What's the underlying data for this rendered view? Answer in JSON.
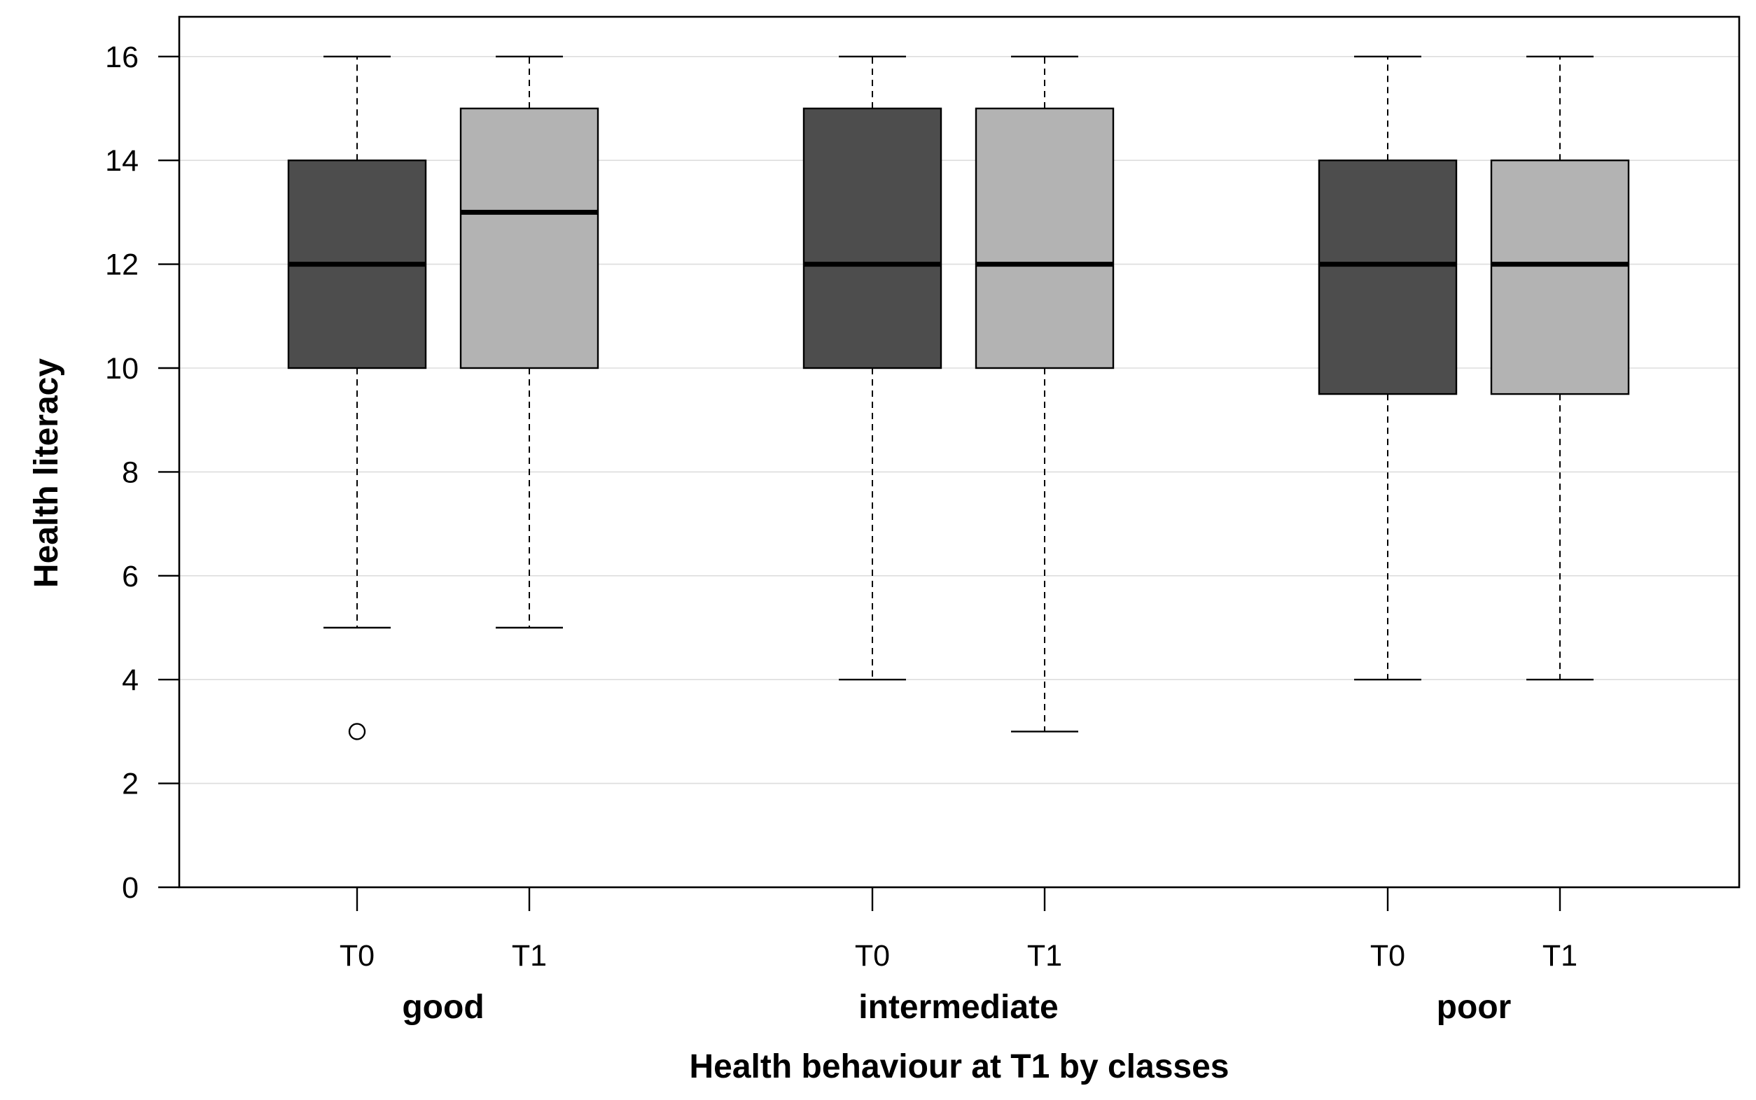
{
  "chart_data": {
    "type": "boxplot",
    "xlabel": "Health behaviour at T1 by classes",
    "ylabel": "Health literacy",
    "ylim": [
      0,
      16.8
    ],
    "yticks": [
      0,
      2,
      4,
      6,
      8,
      10,
      12,
      14,
      16
    ],
    "grid": "horizontal",
    "colors": {
      "T0": "#4d4d4d",
      "T1": "#b3b3b3",
      "grid": "#dddddd",
      "line": "#000000"
    },
    "groups": [
      {
        "label": "good",
        "boxes": [
          {
            "time": "T0",
            "whisker_low": 5,
            "q1": 10,
            "median": 12,
            "q3": 14,
            "whisker_high": 16,
            "outliers": [
              3
            ]
          },
          {
            "time": "T1",
            "whisker_low": 5,
            "q1": 10,
            "median": 13,
            "q3": 15,
            "whisker_high": 16,
            "outliers": []
          }
        ]
      },
      {
        "label": "intermediate",
        "boxes": [
          {
            "time": "T0",
            "whisker_low": 4,
            "q1": 10,
            "median": 12,
            "q3": 15,
            "whisker_high": 16,
            "outliers": []
          },
          {
            "time": "T1",
            "whisker_low": 3,
            "q1": 10,
            "median": 12,
            "q3": 15,
            "whisker_high": 16,
            "outliers": []
          }
        ]
      },
      {
        "label": "poor",
        "boxes": [
          {
            "time": "T0",
            "whisker_low": 4,
            "q1": 9.5,
            "median": 12,
            "q3": 14,
            "whisker_high": 16,
            "outliers": []
          },
          {
            "time": "T1",
            "whisker_low": 4,
            "q1": 9.5,
            "median": 12,
            "q3": 14,
            "whisker_high": 16,
            "outliers": []
          }
        ]
      }
    ]
  }
}
